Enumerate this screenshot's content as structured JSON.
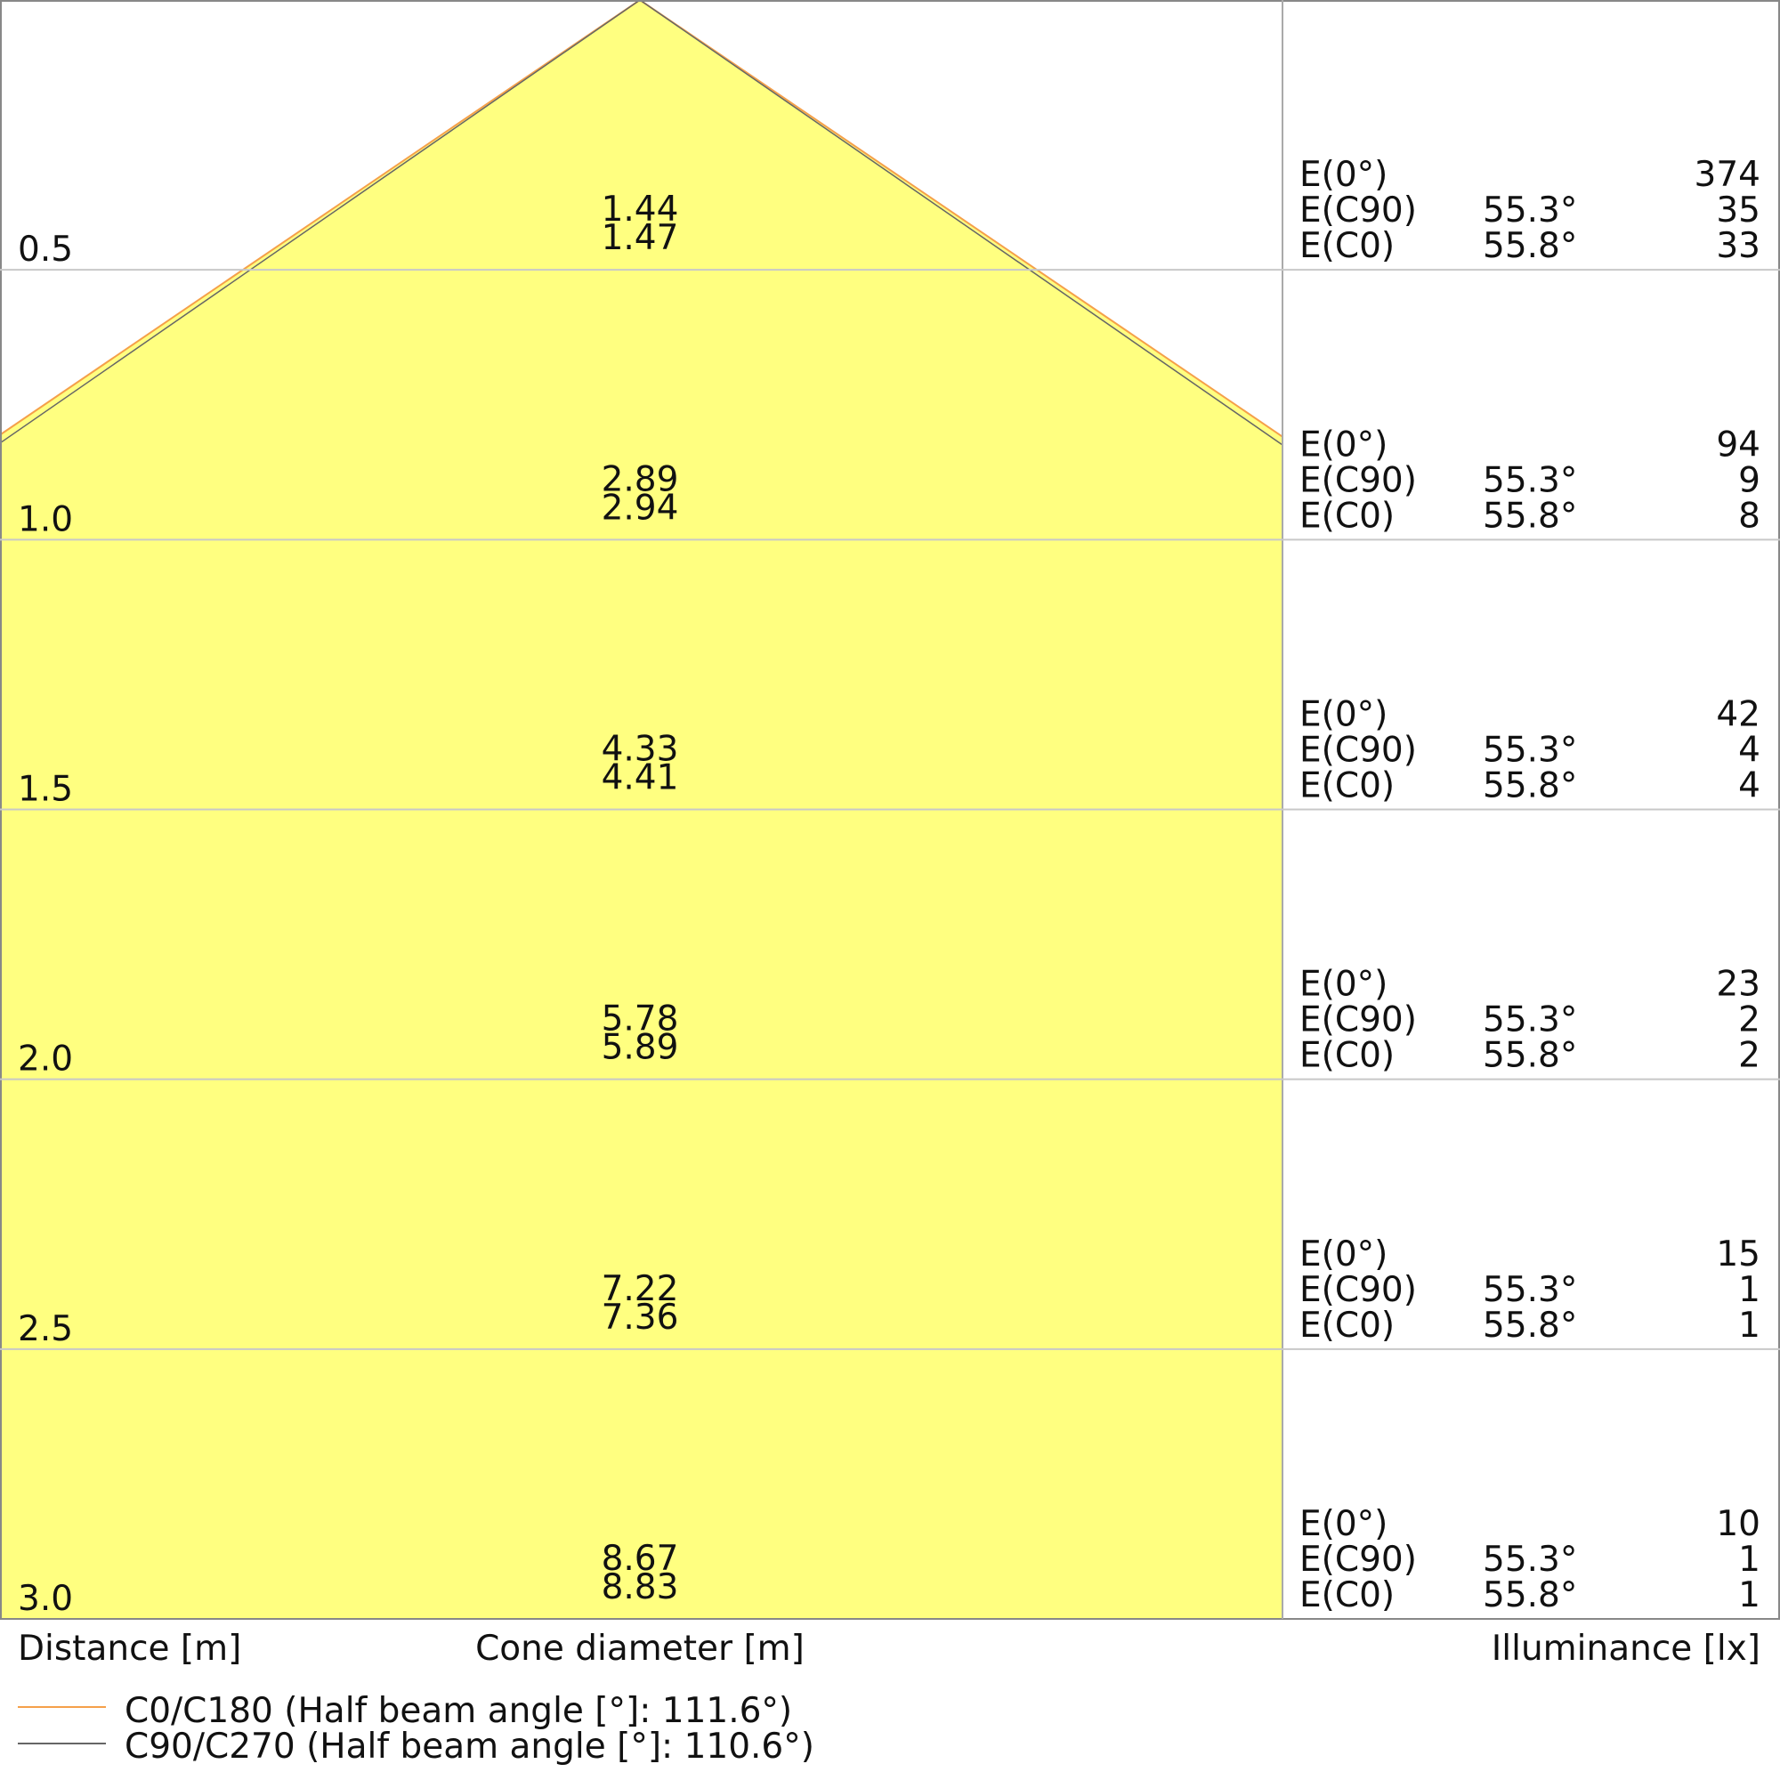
{
  "chart_data": {
    "type": "cone-diagram",
    "xlabel_left": "Distance [m]",
    "xlabel_center": "Cone diameter [m]",
    "xlabel_right": "Illuminance [lx]",
    "distance_range": [
      0,
      3.0
    ],
    "grid": true,
    "colors": {
      "fill": "#ffff80",
      "c0": "#f5a04a",
      "c90": "#666666",
      "grid": "#c8c8c8"
    },
    "series": [
      {
        "name": "C0/C180 (Half beam angle [°]: 111.6°)",
        "half_beam_angle": 111.6,
        "color": "#f5a04a"
      },
      {
        "name": "C90/C270 (Half beam angle [°]: 110.6°)",
        "half_beam_angle": 110.6,
        "color": "#666666"
      }
    ],
    "rows": [
      {
        "distance": "0.5",
        "d1": "1.44",
        "d2": "1.47",
        "e0": "374",
        "ec90": "35",
        "ec0": "33"
      },
      {
        "distance": "1.0",
        "d1": "2.89",
        "d2": "2.94",
        "e0": "94",
        "ec90": "9",
        "ec0": "8"
      },
      {
        "distance": "1.5",
        "d1": "4.33",
        "d2": "4.41",
        "e0": "42",
        "ec90": "4",
        "ec0": "4"
      },
      {
        "distance": "2.0",
        "d1": "5.78",
        "d2": "5.89",
        "e0": "23",
        "ec90": "2",
        "ec0": "2"
      },
      {
        "distance": "2.5",
        "d1": "7.22",
        "d2": "7.36",
        "e0": "15",
        "ec90": "1",
        "ec0": "1"
      },
      {
        "distance": "3.0",
        "d1": "8.67",
        "d2": "8.83",
        "e0": "10",
        "ec90": "1",
        "ec0": "1"
      }
    ],
    "labels": {
      "e0": "E(0°)",
      "ec90": "E(C90)",
      "ec0": "E(C0)",
      "angle_c90": "55.3°",
      "angle_c0": "55.8°"
    }
  }
}
